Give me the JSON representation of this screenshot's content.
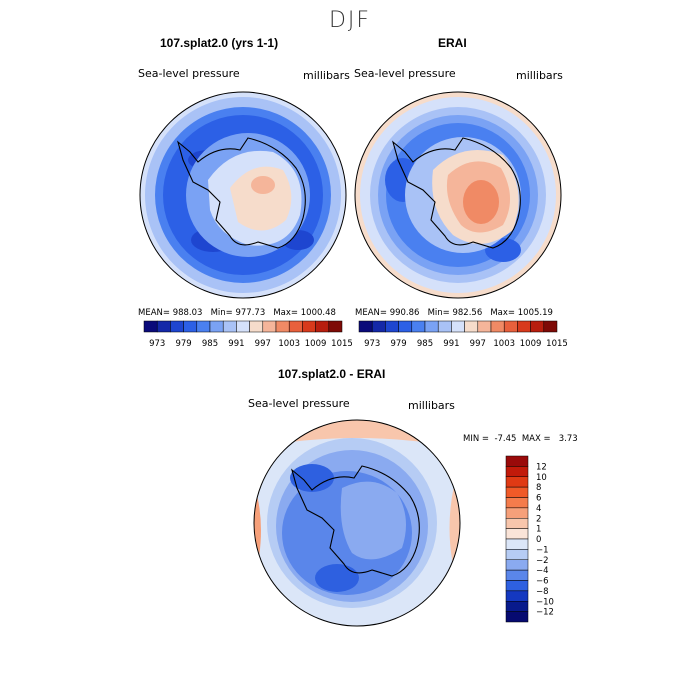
{
  "figure": {
    "season": "DJF"
  },
  "chart_data": [
    {
      "type": "heatmap",
      "title": "107.splat2.0 (yrs 1-1)",
      "field_label": "Sea-level pressure",
      "units": "millibars",
      "stats": {
        "mean_label": "MEAN=",
        "mean": "988.03",
        "min_label": "Min=",
        "min": "977.73",
        "max_label": "Max=",
        "max": "1000.48"
      },
      "colorbar": {
        "ticks": [
          "973",
          "979",
          "985",
          "991",
          "997",
          "1003",
          "1009",
          "1015"
        ],
        "colors": [
          "#0a0a7a",
          "#1428a8",
          "#1e46d0",
          "#2c60e6",
          "#4a80f0",
          "#7aa2f4",
          "#a9c2f6",
          "#d5e1fa",
          "#f6dccb",
          "#f5b59a",
          "#f08a65",
          "#e8603c",
          "#d83a1c",
          "#b81e0e",
          "#7e0a06"
        ]
      }
    },
    {
      "type": "heatmap",
      "title": "ERAI",
      "field_label": "Sea-level pressure",
      "units": "millibars",
      "stats": {
        "mean_label": "MEAN=",
        "mean": "990.86",
        "min_label": "Min=",
        "min": "982.56",
        "max_label": "Max=",
        "max": "1005.19"
      },
      "colorbar": {
        "ticks": [
          "973",
          "979",
          "985",
          "991",
          "997",
          "1003",
          "1009",
          "1015"
        ],
        "colors": [
          "#0a0a7a",
          "#1428a8",
          "#1e46d0",
          "#2c60e6",
          "#4a80f0",
          "#7aa2f4",
          "#a9c2f6",
          "#d5e1fa",
          "#f6dccb",
          "#f5b59a",
          "#f08a65",
          "#e8603c",
          "#d83a1c",
          "#b81e0e",
          "#7e0a06"
        ]
      }
    },
    {
      "type": "heatmap",
      "title": "107.splat2.0 - ERAI",
      "field_label": "Sea-level pressure",
      "units": "millibars",
      "stats": {
        "min_label": "MIN =",
        "min": "-7.45",
        "max_label": "MAX =",
        "max": "3.73"
      },
      "colorbar": {
        "ticks": [
          "12",
          "10",
          "8",
          "6",
          "4",
          "2",
          "1",
          "0",
          "−1",
          "−2",
          "−4",
          "−6",
          "−8",
          "−10",
          "−12"
        ],
        "colors": [
          "#9a0a0a",
          "#c21a0a",
          "#e03a14",
          "#f05a28",
          "#f47c4c",
          "#f6a07a",
          "#f8c6ac",
          "#fae4d8",
          "#dbe6f8",
          "#b6ccf4",
          "#8aaaf0",
          "#5a86ea",
          "#2e60e0",
          "#1438c0",
          "#081a8c",
          "#060a70"
        ]
      }
    }
  ]
}
